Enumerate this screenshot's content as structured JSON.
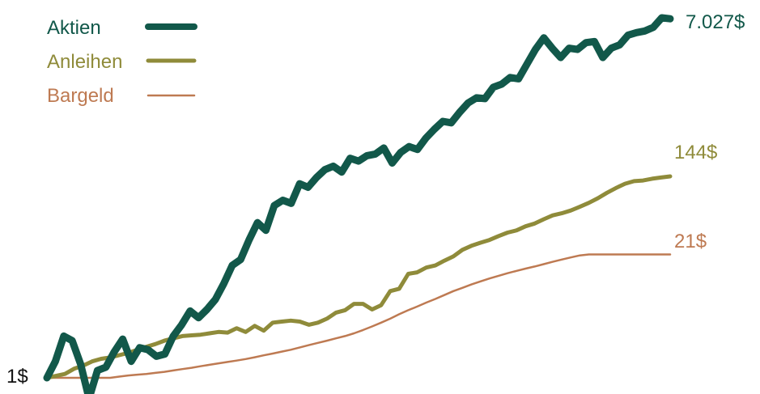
{
  "chart_data": {
    "type": "line",
    "title": "",
    "xlabel": "",
    "ylabel": "",
    "grid": false,
    "legend_position": "top-left",
    "start_label": "1$",
    "series": [
      {
        "name": "Aktien",
        "color": "#12584a",
        "end_label": "7.027$",
        "values": [
          1,
          1.5,
          2.8,
          2.5,
          1.4,
          0.6,
          1.2,
          1.3,
          1.9,
          2.6,
          1.5,
          2.1,
          2,
          1.7,
          1.8,
          2.8,
          3.7,
          5.2,
          4.4,
          5.4,
          6.9,
          10.2,
          16,
          18.5,
          30,
          46,
          38,
          70,
          80,
          74,
          120,
          110,
          140,
          170,
          185,
          160,
          225,
          210,
          240,
          250,
          290,
          200,
          260,
          300,
          280,
          370,
          460,
          560,
          540,
          700,
          880,
          1000,
          980,
          1300,
          1400,
          1650,
          1600,
          2300,
          3300,
          4400,
          3400,
          2700,
          3400,
          3300,
          3900,
          4000,
          2700,
          3400,
          3700,
          4700,
          5000,
          5200,
          5700,
          7200,
          7027
        ]
      },
      {
        "name": "Anleihen",
        "color": "#8f8b3a",
        "end_label": "144$",
        "values": [
          1,
          1.05,
          1.1,
          1.25,
          1.35,
          1.5,
          1.6,
          1.65,
          1.75,
          1.85,
          2.0,
          2.15,
          2.3,
          2.5,
          2.65,
          2.8,
          2.85,
          2.9,
          3.0,
          3.1,
          3.05,
          3.4,
          3.1,
          3.6,
          3.2,
          3.9,
          4.0,
          4.1,
          4.0,
          3.7,
          3.9,
          4.3,
          5.0,
          5.3,
          6.2,
          6.2,
          5.4,
          6.0,
          8.5,
          9.0,
          13.0,
          13.5,
          15.2,
          16.0,
          18.0,
          20.0,
          23.5,
          26.0,
          28.0,
          30.0,
          33.0,
          36.0,
          38.0,
          42.0,
          45.0,
          50.0,
          55.0,
          58.0,
          62.0,
          68.0,
          75.0,
          84.0,
          96.0,
          108.0,
          120.0,
          128.0,
          130.0,
          136.0,
          140.0,
          144.0
        ]
      },
      {
        "name": "Bargeld",
        "color": "#be7a52",
        "end_label": "21$",
        "values": [
          1,
          1,
          1,
          1,
          1,
          1,
          1,
          1,
          1.03,
          1.06,
          1.08,
          1.1,
          1.13,
          1.16,
          1.2,
          1.24,
          1.28,
          1.33,
          1.38,
          1.43,
          1.48,
          1.53,
          1.59,
          1.66,
          1.74,
          1.82,
          1.91,
          2.0,
          2.12,
          2.24,
          2.37,
          2.5,
          2.65,
          2.8,
          3.0,
          3.25,
          3.55,
          3.9,
          4.3,
          4.8,
          5.3,
          5.8,
          6.4,
          7.0,
          7.7,
          8.5,
          9.2,
          10.0,
          10.8,
          11.6,
          12.4,
          13.2,
          14.0,
          14.8,
          15.6,
          16.5,
          17.5,
          18.5,
          19.5,
          20.5,
          21.0,
          21.0,
          21.0,
          21.0,
          21.0,
          21.0,
          21.0,
          21.0,
          21.0,
          21.0
        ]
      }
    ]
  }
}
